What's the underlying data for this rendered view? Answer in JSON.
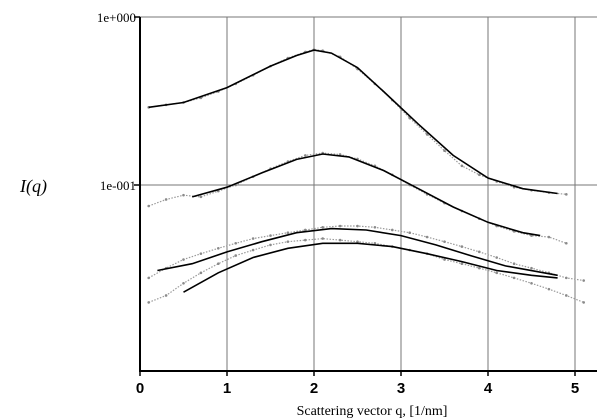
{
  "chart_data": {
    "type": "scatter",
    "title": "",
    "xlabel": "Scattering vector q, [1/nm]",
    "ylabel": "I(q)",
    "xlim": [
      0,
      5.25
    ],
    "ylim": [
      0.005,
      1.0
    ],
    "yscale": "log",
    "grid": true,
    "x_ticks": [
      "0",
      "1",
      "2",
      "3",
      "4",
      "5"
    ],
    "y_ticks": [
      "1e+000",
      "1e-001"
    ],
    "series": [
      {
        "points": [
          [
            0.1,
            0.29
          ],
          [
            0.3,
            0.3
          ],
          [
            0.5,
            0.31
          ],
          [
            0.7,
            0.33
          ],
          [
            0.9,
            0.36
          ],
          [
            1.1,
            0.4
          ],
          [
            1.3,
            0.45
          ],
          [
            1.5,
            0.51
          ],
          [
            1.7,
            0.57
          ],
          [
            1.9,
            0.62
          ],
          [
            2.0,
            0.64
          ],
          [
            2.1,
            0.63
          ],
          [
            2.3,
            0.58
          ],
          [
            2.5,
            0.49
          ],
          [
            2.7,
            0.4
          ],
          [
            2.9,
            0.32
          ],
          [
            3.1,
            0.25
          ],
          [
            3.3,
            0.2
          ],
          [
            3.5,
            0.16
          ],
          [
            3.7,
            0.13
          ],
          [
            3.9,
            0.115
          ],
          [
            4.1,
            0.105
          ],
          [
            4.3,
            0.097
          ],
          [
            4.5,
            0.093
          ],
          [
            4.7,
            0.09
          ],
          [
            4.9,
            0.088
          ]
        ],
        "fit": [
          [
            0.1,
            0.29
          ],
          [
            0.5,
            0.31
          ],
          [
            1.0,
            0.38
          ],
          [
            1.5,
            0.51
          ],
          [
            1.8,
            0.59
          ],
          [
            2.0,
            0.635
          ],
          [
            2.2,
            0.61
          ],
          [
            2.5,
            0.5
          ],
          [
            2.8,
            0.36
          ],
          [
            3.2,
            0.23
          ],
          [
            3.6,
            0.15
          ],
          [
            4.0,
            0.11
          ],
          [
            4.4,
            0.095
          ],
          [
            4.8,
            0.089
          ]
        ]
      },
      {
        "points": [
          [
            0.1,
            0.075
          ],
          [
            0.3,
            0.082
          ],
          [
            0.5,
            0.087
          ],
          [
            0.7,
            0.085
          ],
          [
            0.9,
            0.092
          ],
          [
            1.1,
            0.1
          ],
          [
            1.3,
            0.112
          ],
          [
            1.5,
            0.125
          ],
          [
            1.7,
            0.138
          ],
          [
            1.9,
            0.15
          ],
          [
            2.1,
            0.155
          ],
          [
            2.3,
            0.152
          ],
          [
            2.5,
            0.143
          ],
          [
            2.7,
            0.13
          ],
          [
            2.9,
            0.115
          ],
          [
            3.1,
            0.1
          ],
          [
            3.3,
            0.088
          ],
          [
            3.5,
            0.078
          ],
          [
            3.7,
            0.07
          ],
          [
            3.9,
            0.063
          ],
          [
            4.1,
            0.057
          ],
          [
            4.3,
            0.053
          ],
          [
            4.5,
            0.05
          ],
          [
            4.7,
            0.049
          ],
          [
            4.9,
            0.045
          ]
        ],
        "fit": [
          [
            0.6,
            0.085
          ],
          [
            1.0,
            0.097
          ],
          [
            1.4,
            0.118
          ],
          [
            1.8,
            0.142
          ],
          [
            2.1,
            0.153
          ],
          [
            2.4,
            0.147
          ],
          [
            2.8,
            0.122
          ],
          [
            3.2,
            0.095
          ],
          [
            3.6,
            0.074
          ],
          [
            4.0,
            0.06
          ],
          [
            4.4,
            0.052
          ],
          [
            4.6,
            0.05
          ]
        ]
      },
      {
        "points": [
          [
            0.1,
            0.028
          ],
          [
            0.3,
            0.032
          ],
          [
            0.5,
            0.036
          ],
          [
            0.7,
            0.039
          ],
          [
            0.9,
            0.042
          ],
          [
            1.1,
            0.045
          ],
          [
            1.3,
            0.048
          ],
          [
            1.5,
            0.05
          ],
          [
            1.7,
            0.052
          ],
          [
            1.9,
            0.054
          ],
          [
            2.1,
            0.056
          ],
          [
            2.3,
            0.057
          ],
          [
            2.5,
            0.057
          ],
          [
            2.7,
            0.056
          ],
          [
            2.9,
            0.054
          ],
          [
            3.1,
            0.052
          ],
          [
            3.3,
            0.049
          ],
          [
            3.5,
            0.046
          ],
          [
            3.7,
            0.043
          ],
          [
            3.9,
            0.04
          ],
          [
            4.1,
            0.037
          ],
          [
            4.3,
            0.034
          ],
          [
            4.5,
            0.032
          ],
          [
            4.7,
            0.03
          ],
          [
            4.9,
            0.028
          ],
          [
            5.1,
            0.027
          ]
        ],
        "fit": [
          [
            0.2,
            0.031
          ],
          [
            0.6,
            0.034
          ],
          [
            1.0,
            0.04
          ],
          [
            1.4,
            0.046
          ],
          [
            1.8,
            0.052
          ],
          [
            2.2,
            0.055
          ],
          [
            2.6,
            0.054
          ],
          [
            3.0,
            0.05
          ],
          [
            3.4,
            0.044
          ],
          [
            3.8,
            0.038
          ],
          [
            4.2,
            0.033
          ],
          [
            4.8,
            0.029
          ]
        ]
      },
      {
        "points": [
          [
            0.1,
            0.02
          ],
          [
            0.3,
            0.022
          ],
          [
            0.5,
            0.026
          ],
          [
            0.7,
            0.03
          ],
          [
            0.9,
            0.034
          ],
          [
            1.1,
            0.038
          ],
          [
            1.3,
            0.041
          ],
          [
            1.5,
            0.044
          ],
          [
            1.7,
            0.046
          ],
          [
            1.9,
            0.047
          ],
          [
            2.1,
            0.048
          ],
          [
            2.3,
            0.047
          ],
          [
            2.5,
            0.046
          ],
          [
            2.7,
            0.045
          ],
          [
            2.9,
            0.043
          ],
          [
            3.1,
            0.041
          ],
          [
            3.3,
            0.039
          ],
          [
            3.5,
            0.036
          ],
          [
            3.7,
            0.034
          ],
          [
            3.9,
            0.032
          ],
          [
            4.1,
            0.03
          ],
          [
            4.3,
            0.028
          ],
          [
            4.5,
            0.026
          ],
          [
            4.7,
            0.024
          ],
          [
            4.9,
            0.022
          ],
          [
            5.1,
            0.02
          ]
        ],
        "fit": [
          [
            0.5,
            0.023
          ],
          [
            0.9,
            0.03
          ],
          [
            1.3,
            0.037
          ],
          [
            1.7,
            0.042
          ],
          [
            2.1,
            0.045
          ],
          [
            2.5,
            0.045
          ],
          [
            2.9,
            0.043
          ],
          [
            3.3,
            0.039
          ],
          [
            3.7,
            0.035
          ],
          [
            4.1,
            0.031
          ],
          [
            4.5,
            0.029
          ],
          [
            4.8,
            0.028
          ]
        ]
      }
    ]
  }
}
